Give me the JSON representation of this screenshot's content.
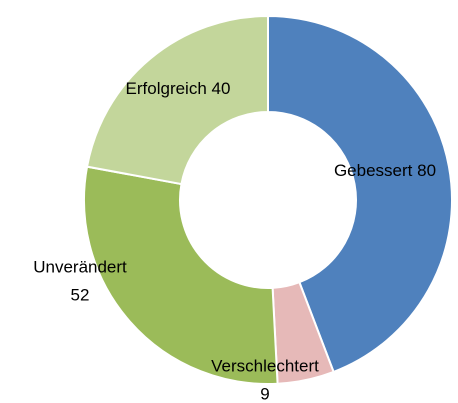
{
  "chart_data": {
    "type": "pie",
    "categories": [
      "Gebessert",
      "Verschlechtert",
      "Unverändert",
      "Erfolgreich"
    ],
    "values": [
      80,
      9,
      52,
      40
    ],
    "colors": [
      "#4f81bd",
      "#e6b9b8",
      "#9bbb59",
      "#c3d69b"
    ]
  }
}
